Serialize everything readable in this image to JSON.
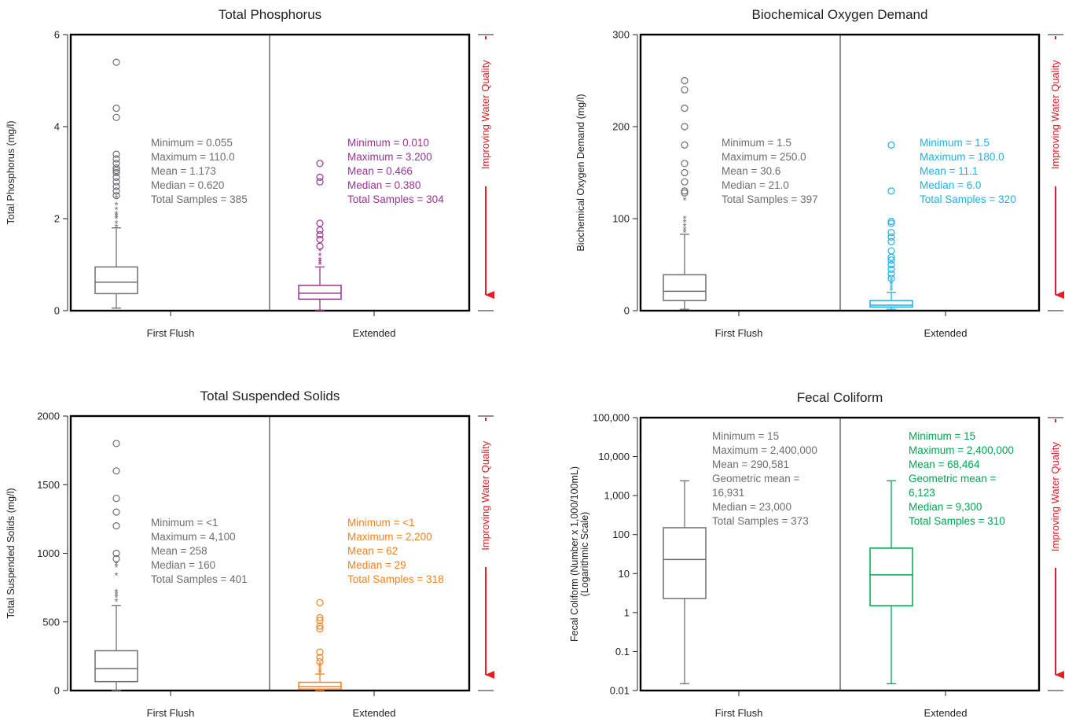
{
  "chart_data": [
    {
      "type": "box",
      "title": "Total Phosphorus",
      "ylabel": [
        "Total Phosphorus (mg/l)"
      ],
      "ylim": [
        0,
        6
      ],
      "yticks": [
        0,
        2,
        4,
        6
      ],
      "ytick_labels": [
        "0",
        "2",
        "4",
        "6"
      ],
      "log": false,
      "categories": [
        "First Flush",
        "Extended"
      ],
      "arrow_label": "Improving Water Quality",
      "boxes": [
        {
          "category": "First Flush",
          "color": "#6d6e71",
          "whisker_low": 0.055,
          "q1": 0.37,
          "median": 0.62,
          "q3": 0.95,
          "whisker_high": 1.8,
          "stars": [
            1.82,
            1.9,
            2.0,
            2.05,
            2.1,
            2.2,
            2.3,
            2.45
          ],
          "circles": [
            2.5,
            2.6,
            2.7,
            2.8,
            2.9,
            3.0,
            3.05,
            3.1,
            3.2,
            3.3,
            3.4,
            4.2,
            4.4,
            5.4
          ],
          "stats": [
            "Minimum = 0.055",
            "Maximum = 110.0",
            "Mean = 1.173",
            "Median = 0.620",
            "Total Samples = 385"
          ]
        },
        {
          "category": "Extended",
          "color": "#9b3391",
          "whisker_low": 0.01,
          "q1": 0.25,
          "median": 0.38,
          "q3": 0.55,
          "whisker_high": 0.95,
          "stars": [
            1.0,
            1.05,
            1.1,
            1.2,
            1.3
          ],
          "circles": [
            1.4,
            1.55,
            1.65,
            1.75,
            1.9,
            2.8,
            2.9,
            3.2
          ],
          "stats": [
            "Minimum = 0.010",
            "Maximum = 3.200",
            "Mean = 0.466",
            "Median = 0.380",
            "Total Samples = 304"
          ]
        }
      ]
    },
    {
      "type": "box",
      "title": "Biochemical Oxygen Demand",
      "ylabel": [
        "Biochemical Oxygen Demand (mg/l)"
      ],
      "ylim": [
        0,
        300
      ],
      "yticks": [
        0,
        100,
        200,
        300
      ],
      "ytick_labels": [
        "0",
        "100",
        "200",
        "300"
      ],
      "log": false,
      "categories": [
        "First Flush",
        "Extended"
      ],
      "arrow_label": "Improving Water Quality",
      "boxes": [
        {
          "category": "First Flush",
          "color": "#6d6e71",
          "whisker_low": 1.5,
          "q1": 11,
          "median": 21,
          "q3": 39,
          "whisker_high": 83,
          "stars": [
            85,
            88,
            92,
            96,
            100,
            120
          ],
          "circles": [
            128,
            130,
            140,
            150,
            160,
            180,
            200,
            220,
            240,
            250
          ],
          "stats": [
            "Minimum = 1.5",
            "Maximum = 250.0",
            "Mean = 30.6",
            "Median = 21.0",
            "Total Samples = 397"
          ]
        },
        {
          "category": "Extended",
          "color": "#1fb1e6",
          "whisker_low": 1.5,
          "q1": 4,
          "median": 6,
          "q3": 11,
          "whisker_high": 20,
          "stars": [
            22,
            25,
            28,
            30,
            33
          ],
          "circles": [
            35,
            40,
            45,
            50,
            55,
            58,
            65,
            75,
            80,
            85,
            95,
            97,
            130,
            180
          ],
          "stats": [
            "Minimum = 1.5",
            "Maximum = 180.0",
            "Mean = 11.1",
            "Median = 6.0",
            "Total Samples = 320"
          ]
        }
      ]
    },
    {
      "type": "box",
      "title": "Total Suspended Solids",
      "ylabel": [
        "Total Suspended Solids (mg/l)"
      ],
      "ylim": [
        0,
        2000
      ],
      "yticks": [
        0,
        500,
        1000,
        1500,
        2000
      ],
      "ytick_labels": [
        "0",
        "500",
        "1000",
        "1500",
        "2000"
      ],
      "log": false,
      "categories": [
        "First Flush",
        "Extended"
      ],
      "arrow_label": "Improving Water Quality",
      "boxes": [
        {
          "category": "First Flush",
          "color": "#6d6e71",
          "whisker_low": 1,
          "q1": 65,
          "median": 160,
          "q3": 290,
          "whisker_high": 620,
          "stars": [
            650,
            680,
            700,
            720,
            840,
            900,
            920
          ],
          "circles": [
            960,
            1000,
            1200,
            1300,
            1400,
            1600,
            1800
          ],
          "stats": [
            "Minimum = <1",
            "Maximum = 4,100",
            "Mean = 258",
            "Median = 160",
            "Total Samples = 401"
          ]
        },
        {
          "category": "Extended",
          "color": "#f58220",
          "whisker_low": 1,
          "q1": 10,
          "median": 29,
          "q3": 60,
          "whisker_high": 120,
          "stars": [
            125,
            135,
            150,
            170,
            190
          ],
          "circles": [
            210,
            240,
            280,
            450,
            470,
            510,
            530,
            640
          ],
          "stats": [
            "Minimum = <1",
            "Maximum = 2,200",
            "Mean = 62",
            "Median = 29",
            "Total Samples = 318"
          ]
        }
      ]
    },
    {
      "type": "box",
      "title": "Fecal Coliform",
      "ylabel": [
        "Fecal Coliform (Number x 1,000/100mL)",
        "(Logarithmic Scale)"
      ],
      "ylim": [
        0.01,
        100000
      ],
      "yticks": [
        0.01,
        0.1,
        1,
        10,
        100,
        1000,
        10000,
        100000
      ],
      "ytick_labels": [
        "0.01",
        "0.1",
        "1",
        "10",
        "100",
        "1,000",
        "10,000",
        "100,000"
      ],
      "log": true,
      "categories": [
        "First Flush",
        "Extended"
      ],
      "arrow_label": "Improving Water Quality",
      "boxes": [
        {
          "category": "First Flush",
          "color": "#6d6e71",
          "whisker_low": 0.015,
          "q1": 2.3,
          "median": 23,
          "q3": 150,
          "whisker_high": 2400,
          "stars": [],
          "circles": [],
          "stats": [
            "Minimum = 15",
            "Maximum = 2,400,000",
            "Mean = 290,581",
            "Geometric mean =",
            "   16,931",
            "Median = 23,000",
            "Total Samples = 373"
          ]
        },
        {
          "category": "Extended",
          "color": "#00a651",
          "whisker_low": 0.015,
          "q1": 1.5,
          "median": 9.3,
          "q3": 45,
          "whisker_high": 2400,
          "stars": [],
          "circles": [],
          "stats": [
            "Minimum = 15",
            "Maximum = 2,400,000",
            "Mean = 68,464",
            "Geometric mean =",
            "   6,123",
            "Median = 9,300",
            "Total Samples = 310"
          ]
        }
      ]
    }
  ]
}
